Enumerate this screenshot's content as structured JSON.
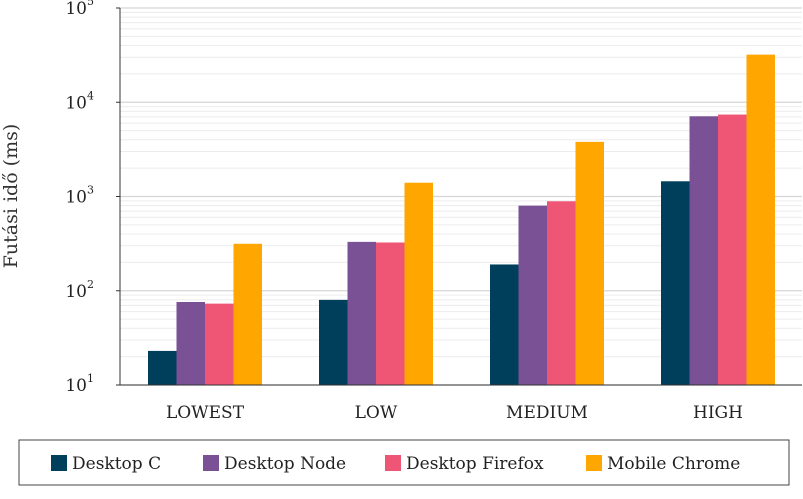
{
  "chart_data": {
    "type": "bar",
    "ylabel": "Futási idő (ms)",
    "xlabel": "",
    "yscale": "log",
    "ylim": [
      10,
      100000
    ],
    "yticks": [
      {
        "base": "10",
        "exp": "1"
      },
      {
        "base": "10",
        "exp": "2"
      },
      {
        "base": "10",
        "exp": "3"
      },
      {
        "base": "10",
        "exp": "4"
      },
      {
        "base": "10",
        "exp": "5"
      }
    ],
    "grid": "horizontal (major and minor)",
    "legend_placement": "bottom",
    "categories": [
      "LOWEST",
      "LOW",
      "MEDIUM",
      "HIGH"
    ],
    "series": [
      {
        "name": "Desktop C",
        "color": "#003f5c",
        "values": [
          23,
          80,
          190,
          1450
        ]
      },
      {
        "name": "Desktop Node",
        "color": "#7a5195",
        "values": [
          76,
          330,
          800,
          7100
        ]
      },
      {
        "name": "Desktop Firefox",
        "color": "#ef5675",
        "values": [
          73,
          325,
          890,
          7400
        ]
      },
      {
        "name": "Mobile Chrome",
        "color": "#ffa600",
        "values": [
          315,
          1400,
          3800,
          32000
        ]
      }
    ]
  }
}
